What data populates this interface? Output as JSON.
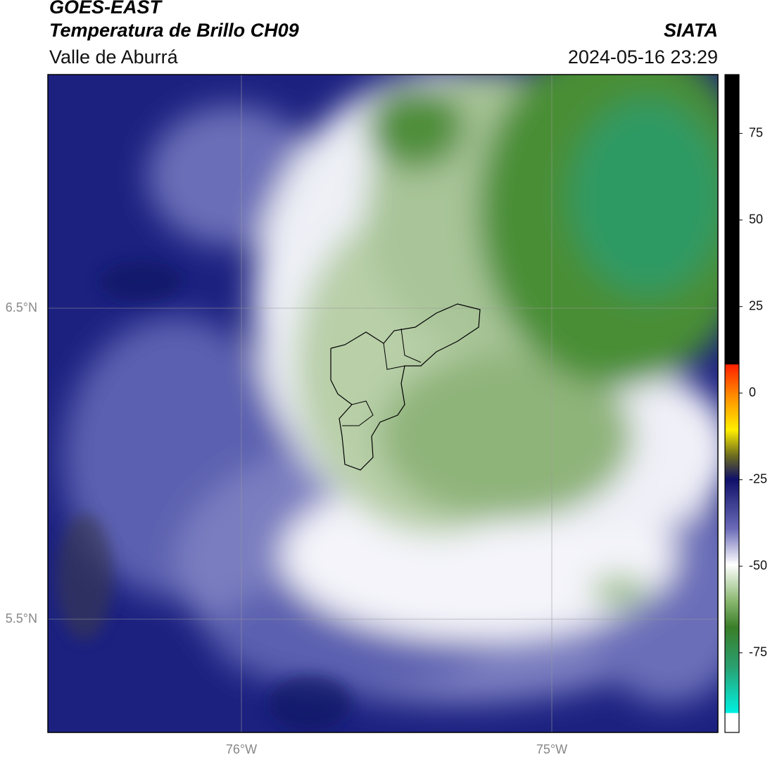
{
  "header": {
    "title": "GOES-EAST",
    "subtitle": "Temperatura de Brillo CH09",
    "region": "Valle de Aburrá",
    "source": "SIATA",
    "timestamp": "2024-05-16 23:29"
  },
  "map": {
    "lat_labels": [
      "6.5°N",
      "5.5°N"
    ],
    "lon_labels": [
      "76°W",
      "75°W"
    ]
  },
  "colorbar": {
    "range": [
      -98,
      92
    ],
    "ticks": [
      75,
      50,
      25,
      0,
      -25,
      -50,
      -75
    ]
  }
}
